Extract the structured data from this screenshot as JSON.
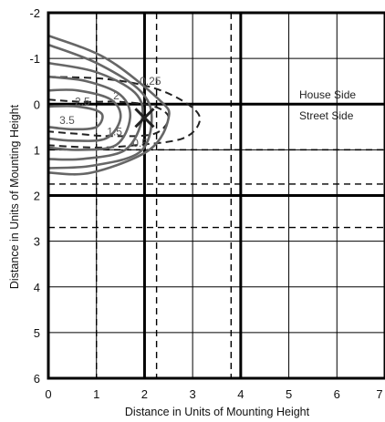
{
  "chart_data": {
    "type": "isocandela-contour",
    "xlabel": "Distance in Units of Mounting Height",
    "ylabel": "Distance in Units of Mounting Height",
    "xlim": [
      0,
      7
    ],
    "ylim": [
      -2,
      6
    ],
    "y_inverted": true,
    "xticks": [
      "0",
      "1",
      "2",
      "3",
      "4",
      "5",
      "6",
      "7"
    ],
    "yticks": [
      "-2",
      "-1",
      "0",
      "1",
      "2",
      "3",
      "4",
      "5",
      "6"
    ],
    "grid": true,
    "annotations": {
      "house_side": "House Side",
      "street_side": "Street Side"
    },
    "solid_vlines": [
      2,
      4
    ],
    "solid_hlines": [
      0,
      2
    ],
    "dashed_vlines": [
      1,
      2.25,
      3.8
    ],
    "dashed_hlines": [
      1.0,
      1.75,
      2.7
    ],
    "luminaire_position": [
      2,
      0.3
    ],
    "contours": [
      {
        "label": "0.25",
        "style": "dashed",
        "label_pos": [
          1.9,
          -0.5
        ],
        "points": [
          [
            0,
            -0.6
          ],
          [
            1.2,
            -0.55
          ],
          [
            2.2,
            -0.35
          ],
          [
            2.9,
            0
          ],
          [
            3.15,
            0.35
          ],
          [
            2.8,
            0.75
          ],
          [
            1.8,
            0.9
          ],
          [
            1.0,
            0.95
          ],
          [
            0,
            0.9
          ]
        ]
      },
      {
        "label": "0.5",
        "style": "dashed",
        "label_pos": [
          1.75,
          0.85
        ],
        "points": [
          [
            0,
            -0.1
          ],
          [
            0.7,
            -0.05
          ],
          [
            1.5,
            -0.05
          ],
          [
            2.2,
            0.05
          ],
          [
            2.5,
            0.3
          ],
          [
            2.2,
            0.65
          ],
          [
            1.3,
            0.7
          ],
          [
            0.6,
            0.65
          ],
          [
            0,
            0.6
          ]
        ]
      },
      {
        "label": "1.5",
        "style": "solid",
        "label_pos": [
          1.22,
          0.6
        ],
        "points": [
          [
            0,
            0.05
          ],
          [
            0.6,
            0.05
          ],
          [
            1.1,
            0.2
          ],
          [
            1.0,
            0.5
          ],
          [
            0.5,
            0.55
          ],
          [
            0,
            0.5
          ]
        ]
      },
      {
        "label": "2",
        "style": "solid",
        "label_pos": [
          1.35,
          -0.18
        ],
        "points": [
          [
            0,
            -0.3
          ],
          [
            0.6,
            -0.3
          ],
          [
            1.3,
            -0.1
          ],
          [
            1.5,
            0.3
          ],
          [
            1.2,
            0.75
          ],
          [
            0.5,
            0.8
          ],
          [
            0,
            0.75
          ]
        ]
      },
      {
        "label": "2.5",
        "style": "solid",
        "label_pos": [
          0.55,
          -0.05
        ],
        "points": [
          [
            0,
            -0.6
          ],
          [
            0.8,
            -0.5
          ],
          [
            1.5,
            -0.2
          ],
          [
            1.7,
            0.3
          ],
          [
            1.4,
            0.9
          ],
          [
            0.6,
            1.0
          ],
          [
            0,
            0.95
          ]
        ]
      },
      {
        "label": "3.5",
        "style": "solid",
        "label_pos": [
          0.23,
          0.35
        ],
        "points": [
          [
            0,
            -0.9
          ],
          [
            1.0,
            -0.7
          ],
          [
            1.8,
            -0.25
          ],
          [
            1.95,
            0.3
          ],
          [
            1.6,
            1.0
          ],
          [
            0.7,
            1.2
          ],
          [
            0,
            1.2
          ]
        ]
      },
      {
        "label": "",
        "style": "solid",
        "label_pos": null,
        "points": [
          [
            0,
            -1.3
          ],
          [
            1.0,
            -0.9
          ],
          [
            1.9,
            -0.3
          ],
          [
            2.15,
            0.3
          ],
          [
            1.9,
            1.05
          ],
          [
            0.9,
            1.35
          ],
          [
            0,
            1.4
          ]
        ]
      },
      {
        "label": "",
        "style": "solid",
        "label_pos": null,
        "points": [
          [
            0,
            -1.5
          ],
          [
            1.2,
            -1.0
          ],
          [
            2.3,
            -0.1
          ],
          [
            2.5,
            0.3
          ],
          [
            2.1,
            1.0
          ],
          [
            0.9,
            1.5
          ],
          [
            0,
            1.5
          ]
        ]
      }
    ]
  }
}
